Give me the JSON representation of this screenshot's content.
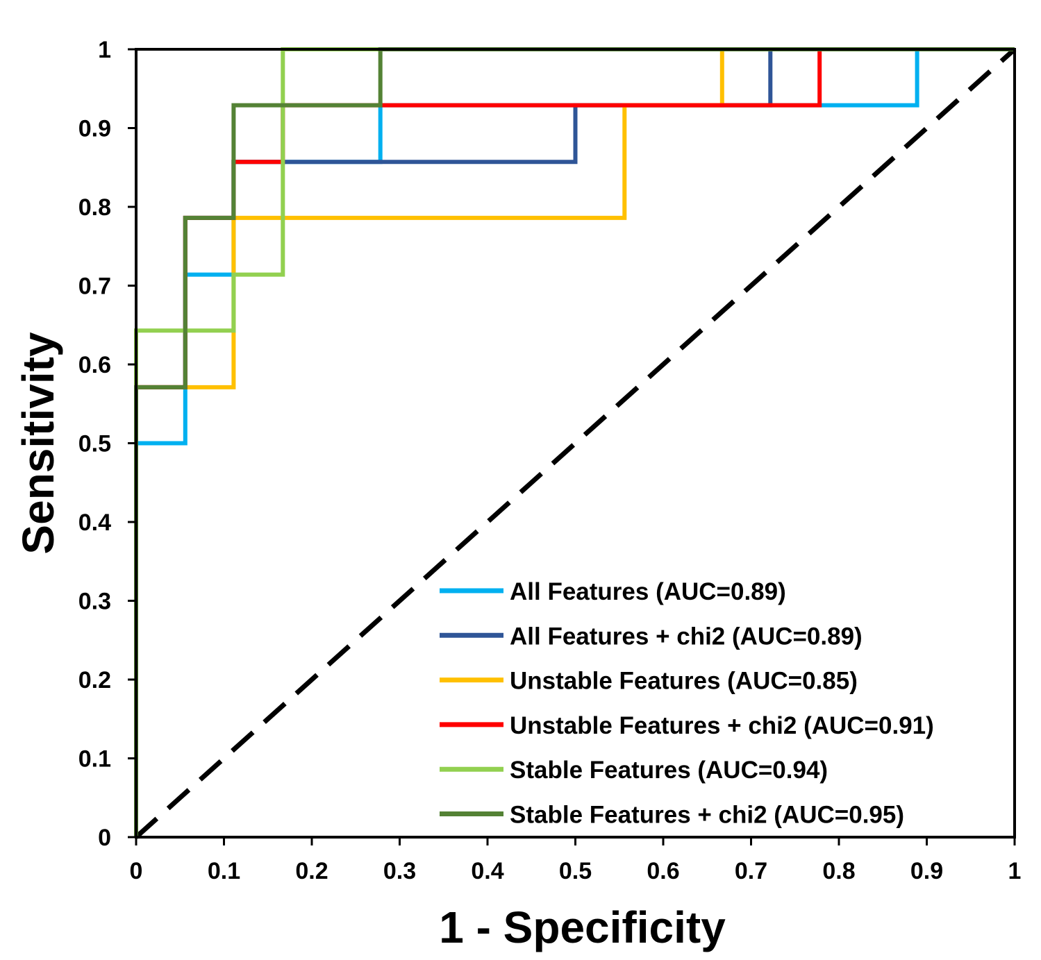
{
  "chart_data": {
    "type": "line",
    "title": "",
    "xlabel": "1 - Specificity",
    "ylabel": "Sensitivity",
    "xlim": [
      0,
      1
    ],
    "ylim": [
      0,
      1
    ],
    "xticks": [
      "0",
      "0.1",
      "0.2",
      "0.3",
      "0.4",
      "0.5",
      "0.6",
      "0.7",
      "0.8",
      "0.9",
      "1"
    ],
    "yticks": [
      "0",
      "0.1",
      "0.2",
      "0.3",
      "0.4",
      "0.5",
      "0.6",
      "0.7",
      "0.8",
      "0.9",
      "1"
    ],
    "legend_position": "bottom-right",
    "grid": false,
    "reference_line": {
      "name": "chance",
      "x": [
        0,
        1
      ],
      "y": [
        0,
        1
      ],
      "color": "#000000",
      "style": "dashed"
    },
    "series": [
      {
        "name": "All Features (AUC=0.89)",
        "color": "#00B0F0",
        "x": [
          0,
          0,
          0.056,
          0.056,
          0.111,
          0.111,
          0.278,
          0.278,
          0.889,
          0.889,
          1
        ],
        "y": [
          0,
          0.5,
          0.5,
          0.714,
          0.714,
          0.857,
          0.857,
          0.929,
          0.929,
          1,
          1
        ]
      },
      {
        "name": "All Features + chi2 (AUC=0.89)",
        "color": "#2F5597",
        "x": [
          0,
          0,
          0.056,
          0.056,
          0.111,
          0.111,
          0.5,
          0.5,
          0.722,
          0.722,
          1
        ],
        "y": [
          0,
          0.571,
          0.571,
          0.786,
          0.786,
          0.857,
          0.857,
          0.929,
          0.929,
          1,
          1
        ]
      },
      {
        "name": "Unstable Features (AUC=0.85)",
        "color": "#FFC000",
        "x": [
          0,
          0,
          0.111,
          0.111,
          0.556,
          0.556,
          0.667,
          0.667,
          1
        ],
        "y": [
          0,
          0.571,
          0.571,
          0.786,
          0.786,
          0.929,
          0.929,
          1,
          1
        ]
      },
      {
        "name": "Unstable Features + chi2 (AUC=0.91)",
        "color": "#FF0000",
        "x": [
          0,
          0,
          0.056,
          0.056,
          0.111,
          0.111,
          0.167,
          0.167,
          0.778,
          0.778,
          1
        ],
        "y": [
          0,
          0.571,
          0.571,
          0.786,
          0.786,
          0.857,
          0.857,
          0.929,
          0.929,
          1,
          1
        ]
      },
      {
        "name": "Stable Features (AUC=0.94)",
        "color": "#92D050",
        "x": [
          0,
          0,
          0.111,
          0.111,
          0.167,
          0.167,
          1
        ],
        "y": [
          0,
          0.643,
          0.643,
          0.714,
          0.714,
          1,
          1
        ]
      },
      {
        "name": "Stable Features + chi2 (AUC=0.95)",
        "color": "#548235",
        "x": [
          0,
          0,
          0.056,
          0.056,
          0.111,
          0.111,
          0.278,
          0.278,
          1
        ],
        "y": [
          0,
          0.571,
          0.571,
          0.786,
          0.786,
          0.929,
          0.929,
          1,
          1
        ]
      }
    ]
  }
}
